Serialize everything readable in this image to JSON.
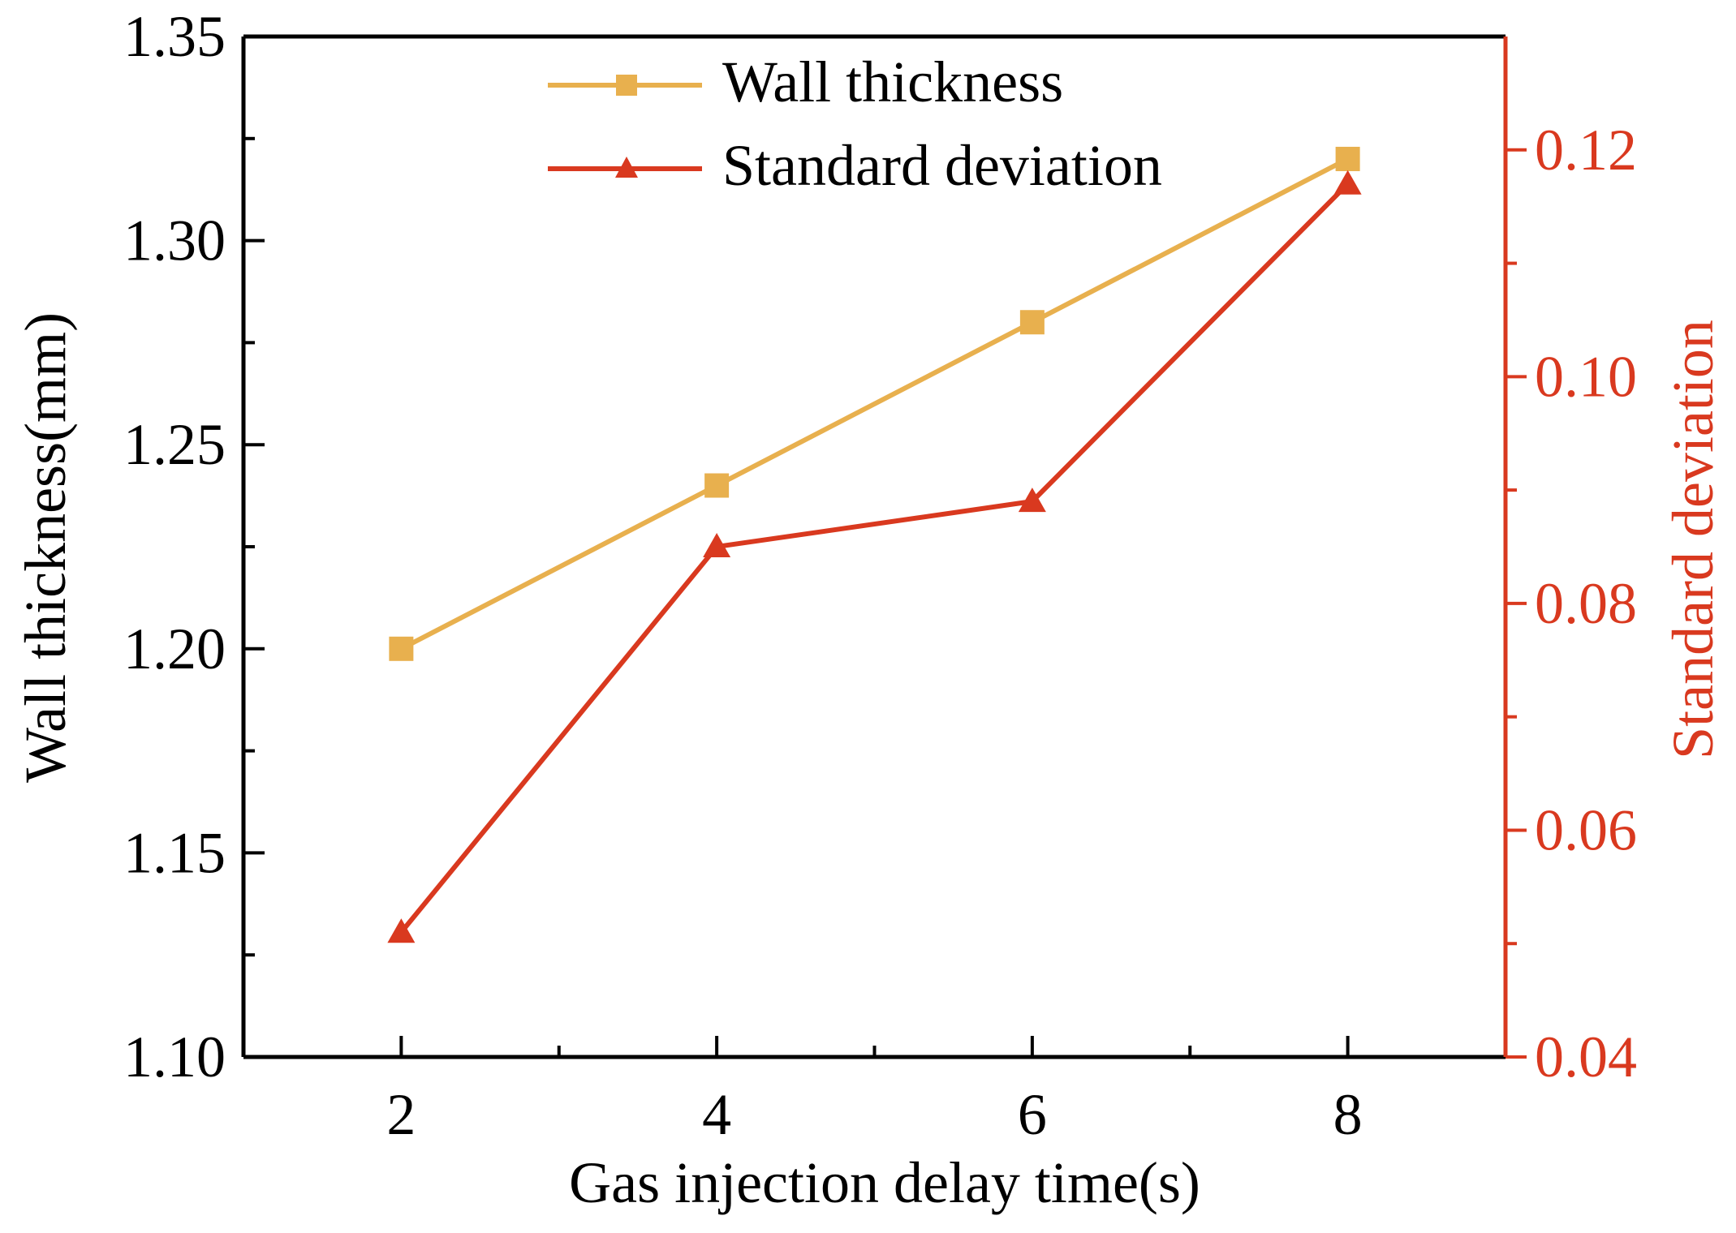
{
  "chart_data": {
    "type": "line",
    "title": "",
    "xlabel": "Gas injection delay time(s)",
    "ylabel": "Wall thickness(mm)",
    "y2label": "Standard deviation",
    "x": [
      2,
      4,
      6,
      8
    ],
    "xlim": [
      1,
      9
    ],
    "xticks": [
      2,
      4,
      6,
      8
    ],
    "ylim": [
      1.1,
      1.35
    ],
    "yticks": [
      "1.10",
      "1.15",
      "1.20",
      "1.25",
      "1.30",
      "1.35"
    ],
    "y2lim": [
      0.04,
      0.13
    ],
    "y2ticks": [
      "0.04",
      "0.06",
      "0.08",
      "0.10",
      "0.12"
    ],
    "grid": false,
    "legend_position": "top-center",
    "series": [
      {
        "name": "Wall thickness",
        "axis": "left",
        "marker": "square",
        "color": "#E8B04E",
        "values": [
          1.2,
          1.24,
          1.28,
          1.32
        ]
      },
      {
        "name": "Standard deviation",
        "axis": "right",
        "marker": "triangle",
        "color": "#D9391F",
        "values": [
          0.051,
          0.085,
          0.089,
          0.117
        ]
      }
    ],
    "colors": {
      "axis": "#000000",
      "right_axis": "#D9391F"
    }
  }
}
